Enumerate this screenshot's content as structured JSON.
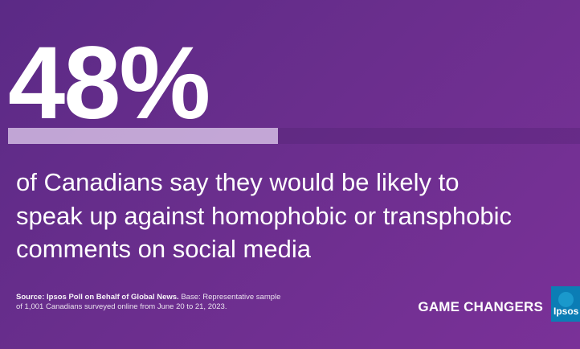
{
  "main": {
    "stat": "48%",
    "headline_lines": [
      "of Canadians say they would be likely to",
      "speak up against homophobic or transphobic",
      "comments on social media"
    ]
  },
  "footer": {
    "source_bold": "Source: Ipsos Poll on Behalf of Global News.",
    "source_text_line1": " Base: Representative sample",
    "source_text_line2": "of 1,001 Canadians surveyed online from June 20 to 21, 2023."
  },
  "brand": {
    "game_changers": "GAME CHANGERS",
    "logo_text": "Ipsos"
  },
  "colors": {
    "background_start": "#5b2a86",
    "background_end": "#7a3198",
    "teal_stripe": "#1aa6b7",
    "blue_stripe": "#2d5ea8",
    "logo_blue": "#0b7db5"
  }
}
